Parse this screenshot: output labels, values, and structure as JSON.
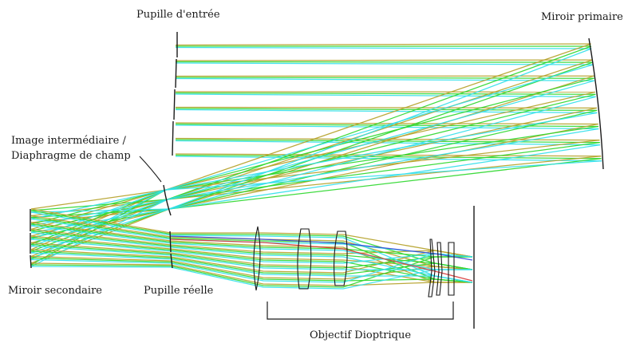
{
  "labels": {
    "entrance_pupil": "Pupille d'entrée",
    "primary_mirror": "Miroir primaire",
    "intermediate_image_line1": "Image intermédiaire /",
    "intermediate_image_line2": "Diaphragme de champ",
    "secondary_mirror": "Miroir secondaire",
    "real_pupil": "Pupille réelle",
    "dioptric_objective": "Objectif Dioptrique"
  },
  "colors": {
    "field_1": "#b5a22a",
    "field_2": "#2fd82f",
    "field_3": "#33e0ea",
    "accent_red": "#d83a3a",
    "accent_blue": "#3a4ad8",
    "optics": "#1a1a1a"
  }
}
